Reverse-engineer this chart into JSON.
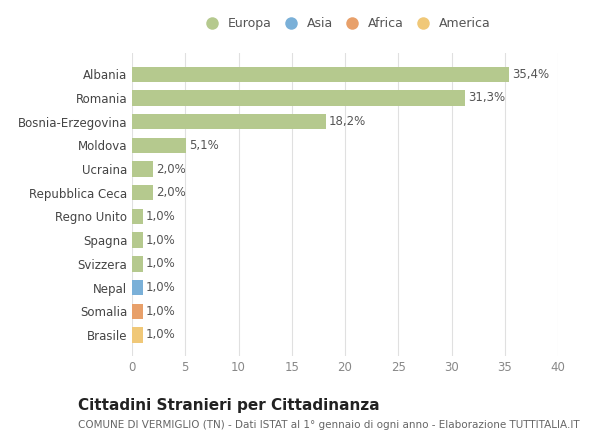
{
  "categories": [
    "Brasile",
    "Somalia",
    "Nepal",
    "Svizzera",
    "Spagna",
    "Regno Unito",
    "Repubblica Ceca",
    "Ucraina",
    "Moldova",
    "Bosnia-Erzegovina",
    "Romania",
    "Albania"
  ],
  "values": [
    1.0,
    1.0,
    1.0,
    1.0,
    1.0,
    1.0,
    2.0,
    2.0,
    5.1,
    18.2,
    31.3,
    35.4
  ],
  "labels": [
    "1,0%",
    "1,0%",
    "1,0%",
    "1,0%",
    "1,0%",
    "1,0%",
    "2,0%",
    "2,0%",
    "5,1%",
    "18,2%",
    "31,3%",
    "35,4%"
  ],
  "colors": [
    "#f0c878",
    "#e8a06a",
    "#7ab0d8",
    "#b5c98e",
    "#b5c98e",
    "#b5c98e",
    "#b5c98e",
    "#b5c98e",
    "#b5c98e",
    "#b5c98e",
    "#b5c98e",
    "#b5c98e"
  ],
  "legend_labels": [
    "Europa",
    "Asia",
    "Africa",
    "America"
  ],
  "legend_colors": [
    "#b5c98e",
    "#7ab0d8",
    "#e8a06a",
    "#f0c878"
  ],
  "title": "Cittadini Stranieri per Cittadinanza",
  "subtitle": "COMUNE DI VERMIGLIO (TN) - Dati ISTAT al 1° gennaio di ogni anno - Elaborazione TUTTITALIA.IT",
  "xlim": [
    0,
    40
  ],
  "xticks": [
    0,
    5,
    10,
    15,
    20,
    25,
    30,
    35,
    40
  ],
  "bg_color": "#ffffff",
  "grid_color": "#e0e0e0",
  "bar_height": 0.65,
  "title_fontsize": 11,
  "subtitle_fontsize": 7.5,
  "label_fontsize": 8.5,
  "tick_fontsize": 8.5,
  "legend_fontsize": 9
}
